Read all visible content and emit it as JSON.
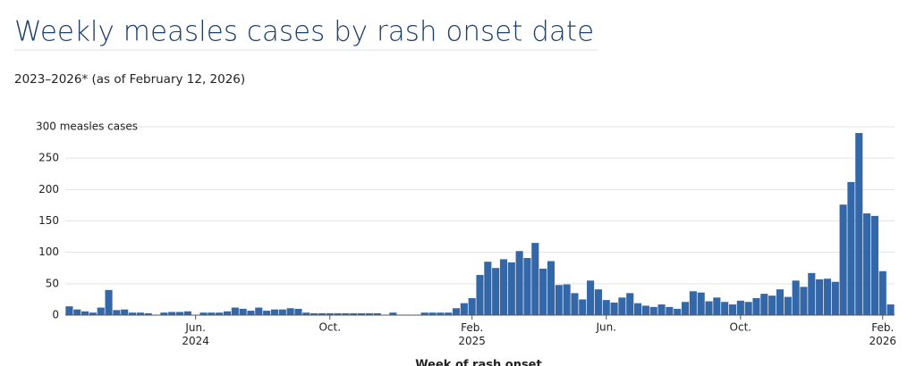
{
  "chart_data": {
    "type": "bar",
    "title": "Weekly measles cases by rash onset date",
    "subtitle": "2023–2026* (as of February 12, 2026)",
    "x_label": "Week of rash onset",
    "color": "#3467a8",
    "grid": true,
    "ylim": [
      0,
      300
    ],
    "yticks": [
      0,
      50,
      100,
      150,
      200,
      250,
      {
        "value": 300,
        "label": "300 measles cases"
      }
    ],
    "categories": [
      null,
      null,
      null,
      null,
      null,
      null,
      null,
      null,
      null,
      null,
      null,
      null,
      null,
      null,
      null,
      null,
      "Jun. 2024",
      null,
      null,
      null,
      null,
      null,
      null,
      null,
      null,
      null,
      null,
      null,
      null,
      null,
      null,
      null,
      null,
      "Oct.",
      null,
      null,
      null,
      null,
      null,
      null,
      null,
      null,
      null,
      null,
      null,
      null,
      null,
      null,
      null,
      null,
      null,
      "Feb. 2025",
      null,
      null,
      null,
      null,
      null,
      null,
      null,
      null,
      null,
      null,
      null,
      null,
      null,
      null,
      null,
      null,
      "Jun.",
      null,
      null,
      null,
      null,
      null,
      null,
      null,
      null,
      null,
      null,
      null,
      null,
      null,
      null,
      null,
      null,
      "Oct.",
      null,
      null,
      null,
      null,
      null,
      null,
      null,
      null,
      null,
      null,
      null,
      null,
      null,
      null,
      null,
      null,
      null,
      "Feb. 2026",
      null
    ],
    "values": [
      14,
      9,
      6,
      4,
      12,
      40,
      8,
      9,
      4,
      4,
      3,
      0,
      4,
      5,
      5,
      6,
      0,
      4,
      4,
      4,
      6,
      12,
      10,
      7,
      12,
      7,
      9,
      9,
      11,
      10,
      4,
      3,
      3,
      3,
      3,
      3,
      3,
      3,
      3,
      3,
      0,
      4,
      0,
      0,
      0,
      4,
      4,
      4,
      4,
      11,
      19,
      27,
      64,
      85,
      75,
      89,
      84,
      102,
      91,
      115,
      74,
      86,
      48,
      49,
      35,
      25,
      55,
      41,
      24,
      20,
      28,
      35,
      19,
      15,
      13,
      17,
      13,
      10,
      21,
      38,
      36,
      22,
      28,
      21,
      17,
      23,
      21,
      27,
      34,
      31,
      41,
      29,
      55,
      45,
      67,
      57,
      58,
      53,
      176,
      212,
      290,
      162,
      158,
      70,
      17
    ]
  }
}
